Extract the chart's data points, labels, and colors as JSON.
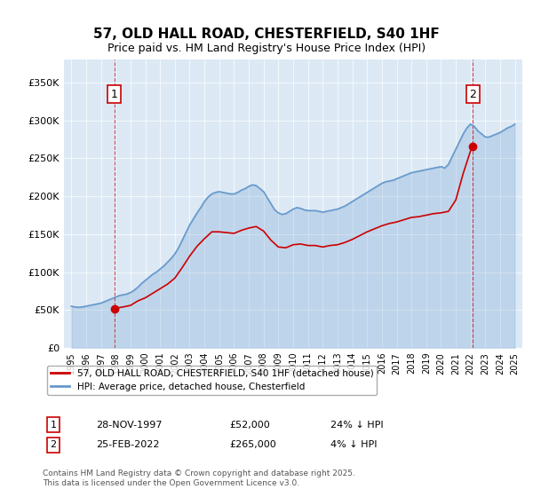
{
  "title": "57, OLD HALL ROAD, CHESTERFIELD, S40 1HF",
  "subtitle": "Price paid vs. HM Land Registry's House Price Index (HPI)",
  "legend_label_red": "57, OLD HALL ROAD, CHESTERFIELD, S40 1HF (detached house)",
  "legend_label_blue": "HPI: Average price, detached house, Chesterfield",
  "annotation1_label": "1",
  "annotation1_date": "28-NOV-1997",
  "annotation1_price": "£52,000",
  "annotation1_hpi": "24% ↓ HPI",
  "annotation1_year": 1997.9,
  "annotation1_value": 52000,
  "annotation2_label": "2",
  "annotation2_date": "25-FEB-2022",
  "annotation2_price": "£265,000",
  "annotation2_hpi": "4% ↓ HPI",
  "annotation2_year": 2022.15,
  "annotation2_value": 265000,
  "ylabel_ticks": [
    "£0",
    "£50K",
    "£100K",
    "£150K",
    "£200K",
    "£250K",
    "£300K",
    "£350K"
  ],
  "ytick_values": [
    0,
    50000,
    100000,
    150000,
    200000,
    250000,
    300000,
    350000
  ],
  "ylim": [
    0,
    380000
  ],
  "xlim_start": 1994.5,
  "xlim_end": 2025.5,
  "background_color": "#dce9f5",
  "plot_bg_color": "#dce9f5",
  "red_color": "#cc0000",
  "blue_color": "#6699cc",
  "footnote": "Contains HM Land Registry data © Crown copyright and database right 2025.\nThis data is licensed under the Open Government Licence v3.0.",
  "hpi_data": {
    "years": [
      1995.0,
      1995.25,
      1995.5,
      1995.75,
      1996.0,
      1996.25,
      1996.5,
      1996.75,
      1997.0,
      1997.25,
      1997.5,
      1997.75,
      1998.0,
      1998.25,
      1998.5,
      1998.75,
      1999.0,
      1999.25,
      1999.5,
      1999.75,
      2000.0,
      2000.25,
      2000.5,
      2000.75,
      2001.0,
      2001.25,
      2001.5,
      2001.75,
      2002.0,
      2002.25,
      2002.5,
      2002.75,
      2003.0,
      2003.25,
      2003.5,
      2003.75,
      2004.0,
      2004.25,
      2004.5,
      2004.75,
      2005.0,
      2005.25,
      2005.5,
      2005.75,
      2006.0,
      2006.25,
      2006.5,
      2006.75,
      2007.0,
      2007.25,
      2007.5,
      2007.75,
      2008.0,
      2008.25,
      2008.5,
      2008.75,
      2009.0,
      2009.25,
      2009.5,
      2009.75,
      2010.0,
      2010.25,
      2010.5,
      2010.75,
      2011.0,
      2011.25,
      2011.5,
      2011.75,
      2012.0,
      2012.25,
      2012.5,
      2012.75,
      2013.0,
      2013.25,
      2013.5,
      2013.75,
      2014.0,
      2014.25,
      2014.5,
      2014.75,
      2015.0,
      2015.25,
      2015.5,
      2015.75,
      2016.0,
      2016.25,
      2016.5,
      2016.75,
      2017.0,
      2017.25,
      2017.5,
      2017.75,
      2018.0,
      2018.25,
      2018.5,
      2018.75,
      2019.0,
      2019.25,
      2019.5,
      2019.75,
      2020.0,
      2020.25,
      2020.5,
      2020.75,
      2021.0,
      2021.25,
      2021.5,
      2021.75,
      2022.0,
      2022.25,
      2022.5,
      2022.75,
      2023.0,
      2023.25,
      2023.5,
      2023.75,
      2024.0,
      2024.25,
      2024.5,
      2024.75,
      2025.0
    ],
    "values": [
      55000,
      54000,
      53500,
      54000,
      55000,
      56000,
      57000,
      58000,
      59000,
      61000,
      63000,
      65000,
      67000,
      69000,
      70000,
      71000,
      73000,
      76000,
      80000,
      85000,
      89000,
      93000,
      97000,
      100000,
      104000,
      108000,
      113000,
      118000,
      124000,
      132000,
      142000,
      152000,
      162000,
      170000,
      178000,
      185000,
      193000,
      199000,
      203000,
      205000,
      206000,
      205000,
      204000,
      203000,
      203000,
      205000,
      208000,
      210000,
      213000,
      215000,
      214000,
      210000,
      206000,
      198000,
      190000,
      182000,
      178000,
      176000,
      177000,
      180000,
      183000,
      185000,
      184000,
      182000,
      181000,
      181000,
      181000,
      180000,
      179000,
      180000,
      181000,
      182000,
      183000,
      185000,
      187000,
      190000,
      193000,
      196000,
      199000,
      202000,
      205000,
      208000,
      211000,
      214000,
      217000,
      219000,
      220000,
      221000,
      223000,
      225000,
      227000,
      229000,
      231000,
      232000,
      233000,
      234000,
      235000,
      236000,
      237000,
      238000,
      239000,
      237000,
      242000,
      252000,
      262000,
      272000,
      282000,
      290000,
      295000,
      292000,
      286000,
      282000,
      278000,
      278000,
      280000,
      282000,
      284000,
      287000,
      290000,
      292000,
      295000
    ]
  },
  "price_paid_data": {
    "years": [
      1997.9,
      2022.15
    ],
    "values": [
      52000,
      265000
    ]
  },
  "red_line_data": {
    "years": [
      1997.9,
      1998.5,
      1999.0,
      1999.5,
      2000.0,
      2000.5,
      2001.0,
      2001.5,
      2002.0,
      2002.5,
      2003.0,
      2003.5,
      2004.0,
      2004.5,
      2005.0,
      2005.5,
      2006.0,
      2006.5,
      2007.0,
      2007.5,
      2008.0,
      2008.5,
      2009.0,
      2009.5,
      2010.0,
      2010.5,
      2011.0,
      2011.5,
      2012.0,
      2012.5,
      2013.0,
      2013.5,
      2014.0,
      2014.5,
      2015.0,
      2015.5,
      2016.0,
      2016.5,
      2017.0,
      2017.5,
      2018.0,
      2018.5,
      2019.0,
      2019.5,
      2020.0,
      2020.5,
      2021.0,
      2021.5,
      2022.0,
      2022.15
    ],
    "values": [
      52000,
      54000,
      56000,
      62000,
      66000,
      72000,
      78000,
      84000,
      92000,
      106000,
      121000,
      134000,
      144000,
      153000,
      153000,
      152000,
      151000,
      155000,
      158000,
      160000,
      154000,
      142000,
      133000,
      132000,
      136000,
      137000,
      135000,
      135000,
      133000,
      135000,
      136000,
      139000,
      143000,
      148000,
      153000,
      157000,
      161000,
      164000,
      166000,
      169000,
      172000,
      173000,
      175000,
      177000,
      178000,
      180000,
      195000,
      230000,
      260000,
      265000
    ]
  }
}
